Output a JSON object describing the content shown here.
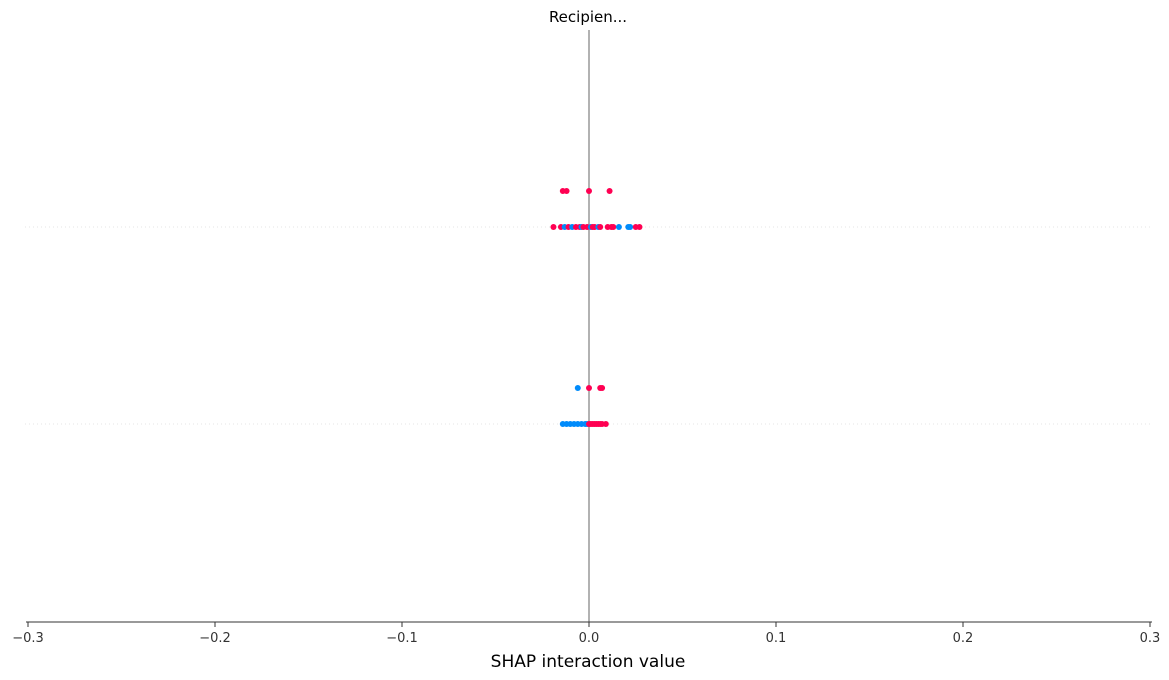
{
  "chart_data": {
    "type": "scatter",
    "title": "Recipien...",
    "xlabel": "SHAP interaction value",
    "ylabel": "",
    "xlim": [
      -0.3,
      0.3
    ],
    "x_ticks": [
      -0.3,
      -0.2,
      -0.1,
      0.0,
      0.1,
      0.2,
      0.3
    ],
    "x_tick_labels": [
      "−0.3",
      "−0.2",
      "−0.1",
      "0.0",
      "0.1",
      "0.2",
      "0.3"
    ],
    "grid": "horizontal dotted row lines",
    "colors": {
      "low": "#008bfb",
      "high": "#ff0052",
      "zero_line": "#999999",
      "axis": "#333333",
      "row_grid": "#e6e6e6"
    },
    "rows": [
      {
        "points": [
          {
            "x": -0.014,
            "dy": -1,
            "c": "high"
          },
          {
            "x": -0.012,
            "dy": -1,
            "c": "high"
          },
          {
            "x": 0.0,
            "dy": -1,
            "c": "high"
          },
          {
            "x": 0.011,
            "dy": -1,
            "c": "high"
          },
          {
            "x": -0.019,
            "dy": 0,
            "c": "high"
          },
          {
            "x": -0.015,
            "dy": 0,
            "c": "high"
          },
          {
            "x": -0.013,
            "dy": 0,
            "c": "low"
          },
          {
            "x": -0.011,
            "dy": 0,
            "c": "high"
          },
          {
            "x": -0.009,
            "dy": 0,
            "c": "low"
          },
          {
            "x": -0.007,
            "dy": 0,
            "c": "high"
          },
          {
            "x": -0.005,
            "dy": 0,
            "c": "high"
          },
          {
            "x": -0.004,
            "dy": 0,
            "c": "low"
          },
          {
            "x": -0.003,
            "dy": 0,
            "c": "high"
          },
          {
            "x": -0.001,
            "dy": 0,
            "c": "high"
          },
          {
            "x": 0.001,
            "dy": 0,
            "c": "low"
          },
          {
            "x": 0.002,
            "dy": 0,
            "c": "high"
          },
          {
            "x": 0.003,
            "dy": 0,
            "c": "high"
          },
          {
            "x": 0.005,
            "dy": 0,
            "c": "low"
          },
          {
            "x": 0.006,
            "dy": 0,
            "c": "high"
          },
          {
            "x": 0.01,
            "dy": 0,
            "c": "high"
          },
          {
            "x": 0.012,
            "dy": 0,
            "c": "high"
          },
          {
            "x": 0.013,
            "dy": 0,
            "c": "high"
          },
          {
            "x": 0.016,
            "dy": 0,
            "c": "low"
          },
          {
            "x": 0.021,
            "dy": 0,
            "c": "low"
          },
          {
            "x": 0.022,
            "dy": 0,
            "c": "low"
          },
          {
            "x": 0.025,
            "dy": 0,
            "c": "high"
          },
          {
            "x": 0.027,
            "dy": 0,
            "c": "high"
          }
        ]
      },
      {
        "points": [
          {
            "x": -0.006,
            "dy": -1,
            "c": "low"
          },
          {
            "x": 0.0,
            "dy": -1,
            "c": "high"
          },
          {
            "x": 0.006,
            "dy": -1,
            "c": "high"
          },
          {
            "x": 0.007,
            "dy": -1,
            "c": "high"
          },
          {
            "x": -0.014,
            "dy": 0,
            "c": "low"
          },
          {
            "x": -0.012,
            "dy": 0,
            "c": "low"
          },
          {
            "x": -0.01,
            "dy": 0,
            "c": "low"
          },
          {
            "x": -0.008,
            "dy": 0,
            "c": "low"
          },
          {
            "x": -0.006,
            "dy": 0,
            "c": "low"
          },
          {
            "x": -0.004,
            "dy": 0,
            "c": "low"
          },
          {
            "x": -0.002,
            "dy": 0,
            "c": "low"
          },
          {
            "x": -0.001,
            "dy": 0,
            "c": "low"
          },
          {
            "x": 0.0,
            "dy": 0,
            "c": "high"
          },
          {
            "x": 0.001,
            "dy": 0,
            "c": "high"
          },
          {
            "x": 0.002,
            "dy": 0,
            "c": "high"
          },
          {
            "x": 0.003,
            "dy": 0,
            "c": "high"
          },
          {
            "x": 0.004,
            "dy": 0,
            "c": "high"
          },
          {
            "x": 0.005,
            "dy": 0,
            "c": "high"
          },
          {
            "x": 0.006,
            "dy": 0,
            "c": "high"
          },
          {
            "x": 0.007,
            "dy": 0,
            "c": "high"
          },
          {
            "x": 0.009,
            "dy": 0,
            "c": "high"
          }
        ]
      }
    ]
  }
}
